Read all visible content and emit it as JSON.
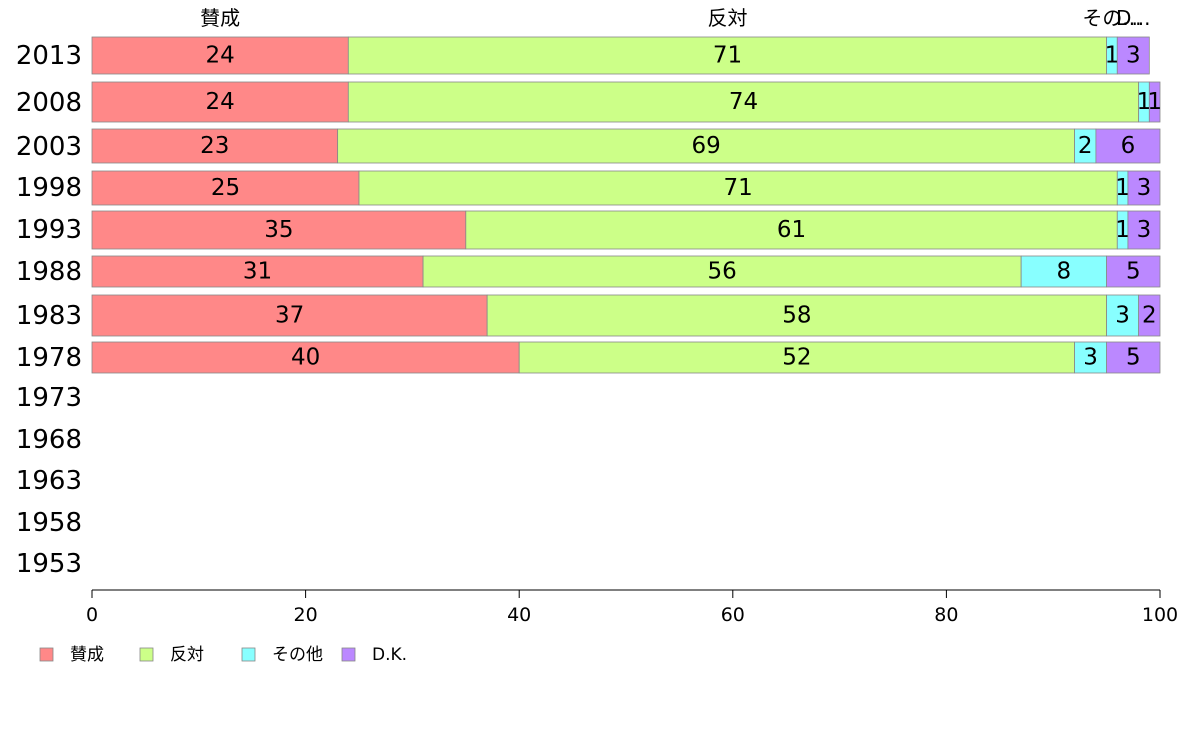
{
  "chart_data": {
    "type": "bar",
    "orientation": "horizontal",
    "stacked": true,
    "categories": [
      "2013",
      "2008",
      "2003",
      "1998",
      "1993",
      "1988",
      "1983",
      "1978",
      "1973",
      "1968",
      "1963",
      "1958",
      "1953"
    ],
    "series": [
      {
        "name": "賛成",
        "color": "#ff8888",
        "values": [
          24,
          24,
          23,
          25,
          35,
          31,
          37,
          40,
          null,
          null,
          null,
          null,
          null
        ]
      },
      {
        "name": "反対",
        "color": "#ccff88",
        "values": [
          71,
          74,
          69,
          71,
          61,
          56,
          58,
          52,
          null,
          null,
          null,
          null,
          null
        ]
      },
      {
        "name": "その他",
        "color": "#88ffff",
        "values": [
          1,
          1,
          2,
          1,
          1,
          8,
          3,
          3,
          null,
          null,
          null,
          null,
          null
        ]
      },
      {
        "name": "D.K.",
        "color": "#bb88ff",
        "values": [
          3,
          1,
          6,
          3,
          3,
          5,
          2,
          5,
          null,
          null,
          null,
          null,
          null
        ]
      }
    ],
    "top_labels": [
      "賛成",
      "反対",
      "その...",
      "D..."
    ],
    "xlim": [
      0,
      100
    ],
    "xticks": [
      "0",
      "20",
      "40",
      "60",
      "80",
      "100"
    ],
    "xlabel": "",
    "ylabel": "",
    "legend_position": "bottom-left",
    "grid": false
  }
}
